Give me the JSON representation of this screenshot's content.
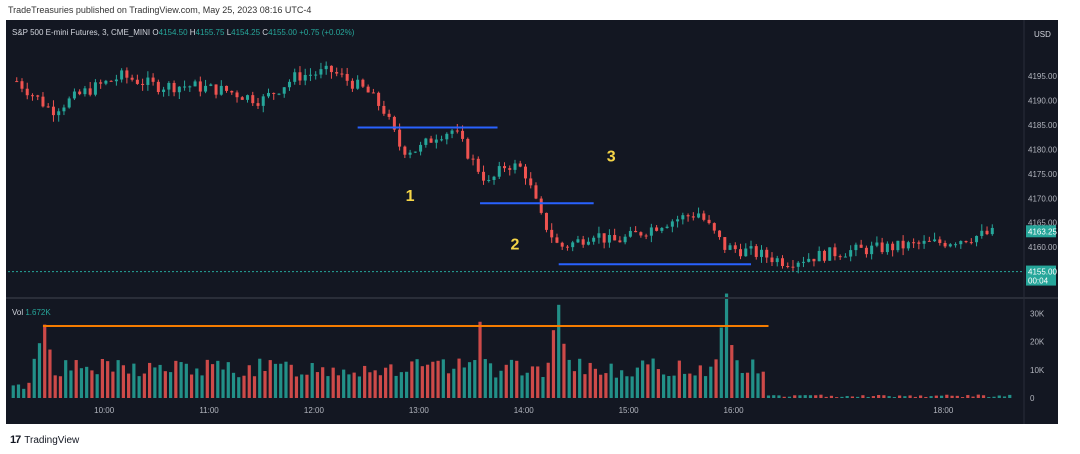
{
  "publisher": "TradeTreasuries published on TradingView.com, May 25, 2023 08:16 UTC-4",
  "footer_brand": "TradingView",
  "legend": {
    "symbol": "S&P 500 E-mini Futures, 3, CME_MINI",
    "o_label": "O",
    "o": "4154.50",
    "h_label": "H",
    "h": "4155.75",
    "l_label": "L",
    "l": "4154.25",
    "c_label": "C",
    "c": "4155.00",
    "change": "+0.75 (+0.02%)"
  },
  "volume_legend": {
    "label": "Vol",
    "value": "1.672K"
  },
  "colors": {
    "up": "#26a69a",
    "down": "#ef5350",
    "level_line": "#2962ff",
    "volume_level": "#f57c00",
    "annotation": "#f5d547",
    "background": "#131722",
    "grid": "#1e2230"
  },
  "chart_data": [
    {
      "type": "candlestick",
      "currency": "USD",
      "x": [
        "9:10",
        "9:30",
        "9:50",
        "10:10",
        "10:30",
        "10:50",
        "11:10",
        "11:30",
        "11:50",
        "12:10",
        "12:30",
        "12:40",
        "12:50",
        "13:00",
        "13:10",
        "13:20",
        "13:30",
        "13:40",
        "13:50",
        "14:00",
        "14:10",
        "14:20",
        "14:30",
        "14:40",
        "14:50",
        "15:00",
        "15:20",
        "15:40",
        "15:55",
        "16:10",
        "16:30",
        "17:00",
        "17:30",
        "18:00",
        "18:30"
      ],
      "y": [
        4194,
        4188,
        4192,
        4195,
        4193,
        4193,
        4192,
        4190,
        4195,
        4196,
        4192,
        4188,
        4180,
        4180,
        4183,
        4184,
        4178,
        4173,
        4177,
        4176,
        4166,
        4160,
        4161,
        4163,
        4161,
        4162,
        4165,
        4167,
        4160,
        4159,
        4157,
        4159,
        4160,
        4161,
        4163
      ],
      "last_price": "4163.25",
      "current_price": "4155.00",
      "countdown": "00:04",
      "ylim": [
        4150,
        4202
      ],
      "y_ticks": [
        "4195.00",
        "4190.00",
        "4185.00",
        "4180.00",
        "4175.00",
        "4170.00",
        "4165.00",
        "4160.00"
      ],
      "x_ticks": [
        "10:00",
        "11:00",
        "12:00",
        "13:00",
        "14:00",
        "15:00",
        "16:00",
        "18:00"
      ],
      "horizontal_levels": [
        {
          "price": 4184.5,
          "from": "12:25",
          "to": "13:45"
        },
        {
          "price": 4169.0,
          "from": "13:35",
          "to": "14:40"
        },
        {
          "price": 4156.5,
          "from": "14:20",
          "to": "16:10"
        }
      ],
      "annotations": [
        {
          "text": "1",
          "x": "12:55",
          "price": 4169.5
        },
        {
          "text": "2",
          "x": "13:55",
          "price": 4159.5
        },
        {
          "text": "3",
          "x": "14:50",
          "price": 4177.5
        }
      ],
      "grid": false
    },
    {
      "type": "bar",
      "name": "Vol",
      "ylim": [
        0,
        34000
      ],
      "y_ticks": [
        "30K",
        "20K",
        "10K",
        "0"
      ],
      "spikes": [
        {
          "x": "9:25",
          "value": 26000
        },
        {
          "x": "13:35",
          "value": 27000
        },
        {
          "x": "14:20",
          "value": 33000
        },
        {
          "x": "15:55",
          "value": 37000
        }
      ],
      "level": {
        "value": 25500,
        "from": "9:25",
        "to": "16:20"
      }
    }
  ]
}
